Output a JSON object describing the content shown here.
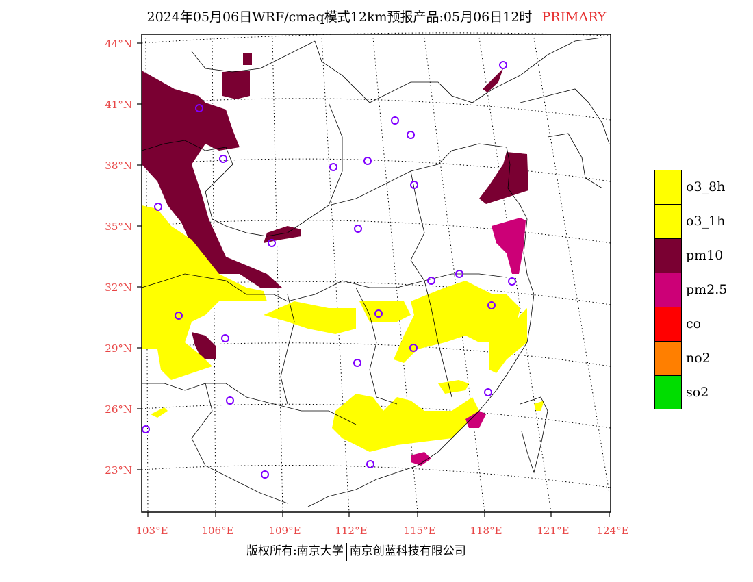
{
  "title": {
    "main": "2024年05月06日WRF/cmaq模式12km预报产品:05月06日12时",
    "tag": "PRIMARY"
  },
  "axes": {
    "lat_labels": [
      "44°N",
      "41°N",
      "38°N",
      "35°N",
      "32°N",
      "29°N",
      "26°N",
      "23°N"
    ],
    "lon_labels": [
      "103°E",
      "106°E",
      "109°E",
      "112°E",
      "115°E",
      "118°E",
      "121°E",
      "124°E"
    ]
  },
  "legend": [
    {
      "label": "o3_8h",
      "color": "#ffff00"
    },
    {
      "label": "o3_1h",
      "color": "#ffff00"
    },
    {
      "label": "pm10",
      "color": "#7a0032"
    },
    {
      "label": "pm2.5",
      "color": "#cc0077"
    },
    {
      "label": "co",
      "color": "#ff0000"
    },
    {
      "label": "no2",
      "color": "#ff7f00"
    },
    {
      "label": "so2",
      "color": "#00dd00"
    }
  ],
  "footer": {
    "left": "版权所有:南京大学",
    "right": "南京创蓝科技有限公司"
  },
  "colors": {
    "o3": "#ffff00",
    "pm10": "#7a0032",
    "pm25": "#cc0077",
    "station": "#8000ff",
    "tick_text": "#e84545"
  }
}
